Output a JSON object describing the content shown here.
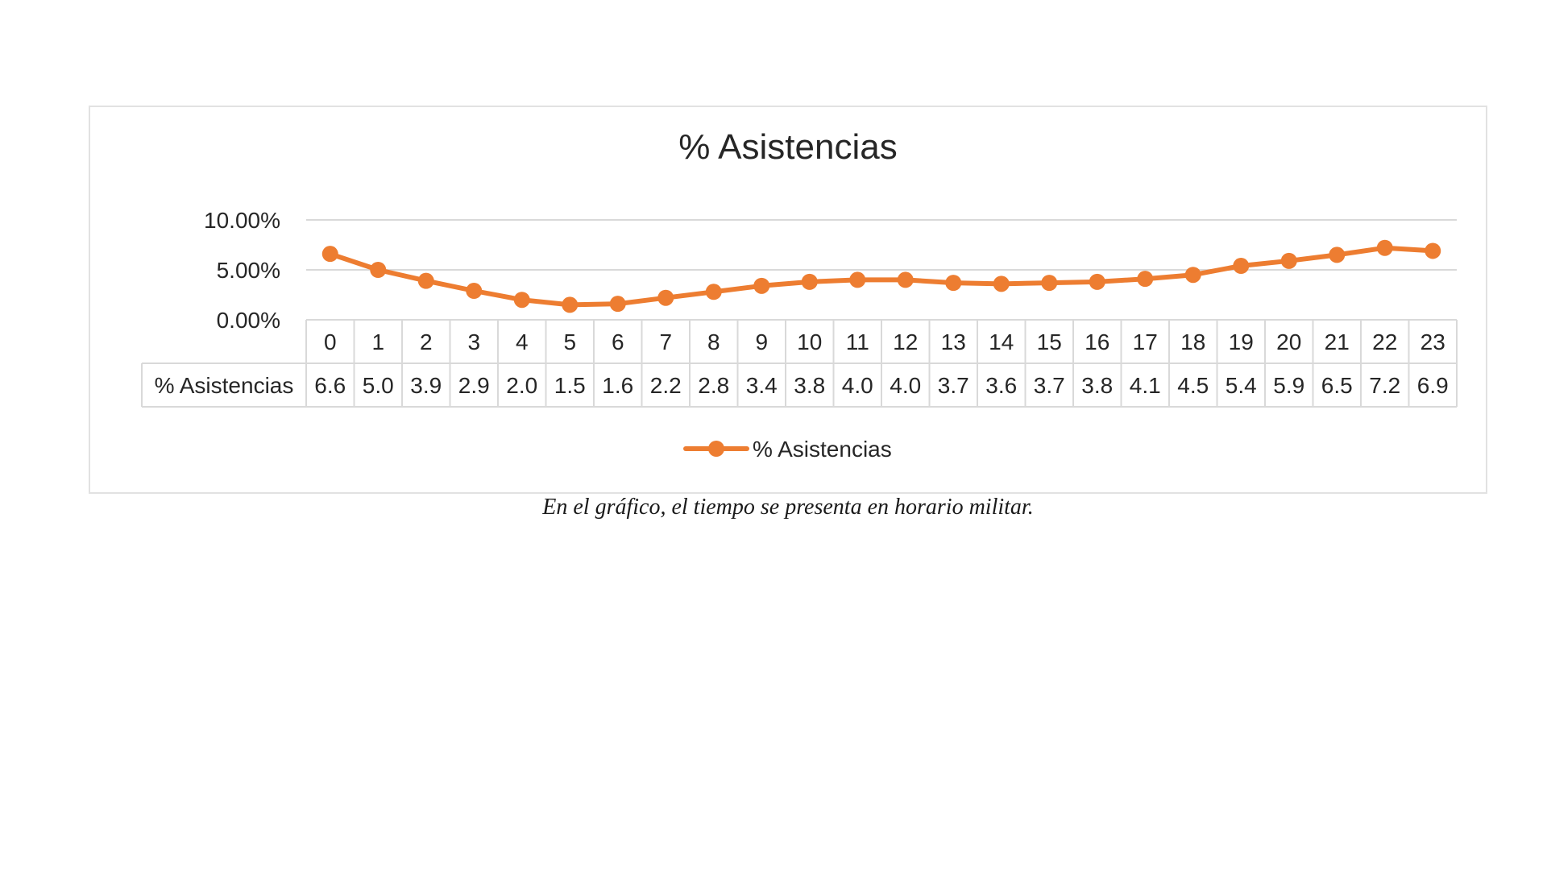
{
  "chart_data": {
    "type": "line",
    "title": "% Asistencias",
    "categories": [
      "0",
      "1",
      "2",
      "3",
      "4",
      "5",
      "6",
      "7",
      "8",
      "9",
      "10",
      "11",
      "12",
      "13",
      "14",
      "15",
      "16",
      "17",
      "18",
      "19",
      "20",
      "21",
      "22",
      "23"
    ],
    "series": [
      {
        "name": "% Asistencias",
        "values": [
          6.6,
          5.0,
          3.9,
          2.9,
          2.0,
          1.5,
          1.6,
          2.2,
          2.8,
          3.4,
          3.8,
          4.0,
          4.0,
          3.7,
          3.6,
          3.7,
          3.8,
          4.1,
          4.5,
          5.4,
          5.9,
          6.5,
          7.2,
          6.9
        ],
        "value_labels": [
          "6.6",
          "5.0",
          "3.9",
          "2.9",
          "2.0",
          "1.5",
          "1.6",
          "2.2",
          "2.8",
          "3.4",
          "3.8",
          "4.0",
          "4.0",
          "3.7",
          "3.6",
          "3.7",
          "3.8",
          "4.1",
          "4.5",
          "5.4",
          "5.9",
          "6.5",
          "7.2",
          "6.9"
        ],
        "color": "#ED7D31"
      }
    ],
    "y_ticks": [
      "0.00%",
      "5.00%",
      "10.00%"
    ],
    "ylim": [
      0,
      10
    ],
    "xlabel": "",
    "ylabel": "",
    "grid": true,
    "legend": "bottom",
    "data_table": true
  },
  "caption": "En el gráfico, el tiempo se presenta en horario militar."
}
